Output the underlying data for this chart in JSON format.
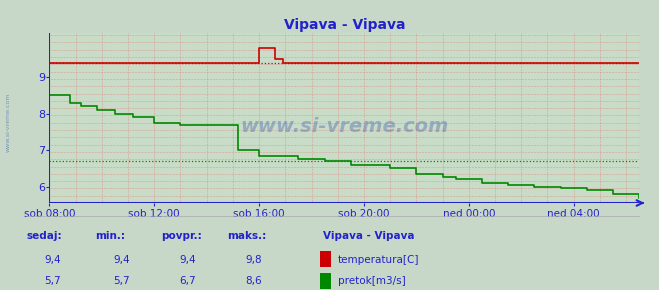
{
  "title": "Vipava - Vipava",
  "fig_bg_color": "#c8d8c8",
  "plot_bg_color": "#c8dcc8",
  "axis_color": "#2222cc",
  "title_color": "#2222cc",
  "x_labels": [
    "sob 08:00",
    "sob 12:00",
    "sob 16:00",
    "sob 20:00",
    "ned 00:00",
    "ned 04:00"
  ],
  "ylim_min": 5.55,
  "ylim_max": 10.2,
  "yticks": [
    6,
    7,
    8,
    9
  ],
  "temp_color": "#cc0000",
  "flow_color": "#008800",
  "temp_avg": 9.4,
  "flow_avg": 6.7,
  "temp_sedaj": "9,4",
  "temp_min": "9,4",
  "temp_povpr": "9,4",
  "temp_maks": "9,8",
  "flow_sedaj": "5,7",
  "flow_min": "5,7",
  "flow_povpr": "6,7",
  "flow_maks": "8,6",
  "watermark": "www.si-vreme.com",
  "table_label": "Vipava - Vipava",
  "legend_temp": "temperatura[C]",
  "legend_flow": "pretok[m3/s]",
  "table_headers": [
    "sedaj:",
    "min.:",
    "povpr.:",
    "maks.:"
  ],
  "temp_x": [
    0,
    7.8,
    8.0,
    8.3,
    8.6,
    8.9,
    9.2,
    24
  ],
  "temp_y": [
    9.4,
    9.4,
    9.8,
    9.8,
    9.5,
    9.4,
    9.4,
    9.4
  ],
  "flow_x": [
    0,
    0.3,
    0.8,
    1.2,
    1.8,
    2.5,
    3.2,
    4.0,
    5.0,
    6.5,
    7.2,
    8.0,
    9.5,
    10.5,
    11.5,
    13.0,
    14.0,
    15.0,
    15.5,
    16.5,
    17.5,
    18.5,
    19.5,
    20.5,
    21.5,
    22.5
  ],
  "flow_y": [
    8.5,
    8.5,
    8.3,
    8.2,
    8.1,
    8.0,
    7.9,
    7.75,
    7.7,
    7.7,
    7.0,
    6.85,
    6.75,
    6.7,
    6.6,
    6.5,
    6.35,
    6.25,
    6.2,
    6.1,
    6.05,
    6.0,
    5.95,
    5.9,
    5.8,
    5.7
  ],
  "xmin": 0,
  "xmax": 22.5,
  "x_tick_positions": [
    0,
    4,
    8,
    12,
    16,
    20
  ]
}
